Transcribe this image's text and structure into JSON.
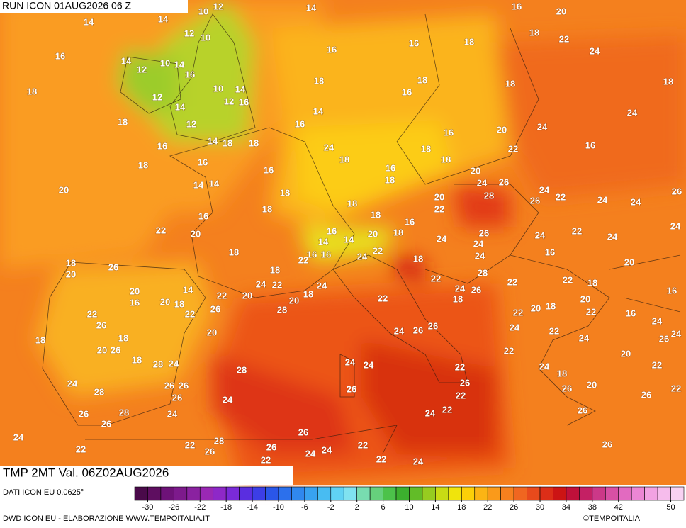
{
  "header": {
    "run": "RUN ICON 01AUG2026 06 Z",
    "field": "TMP 2MT Val. 06Z02AUG2026"
  },
  "footer": {
    "source": "DATI ICON EU 0.0625°",
    "credit": "DWD ICON EU - ELABORAZIONE WWW.TEMPOITALIA.IT",
    "brand": "©TEMPOITALIA"
  },
  "colorbar": {
    "range": [
      -32,
      52
    ],
    "ticks": [
      -30,
      -26,
      -22,
      -18,
      -14,
      -10,
      -6,
      -2,
      2,
      6,
      10,
      14,
      18,
      22,
      26,
      30,
      34,
      38,
      42,
      50
    ],
    "colors": [
      "#4a0a4a",
      "#5e0e60",
      "#6e1278",
      "#7d1a8c",
      "#8a22a0",
      "#9a28b4",
      "#8e28c8",
      "#7a2ad8",
      "#5a2ee0",
      "#3c3ee6",
      "#2a56e8",
      "#2c70ec",
      "#3088ee",
      "#38a2f0",
      "#48bcf2",
      "#60d2f4",
      "#80e2f0",
      "#78dcb0",
      "#66d07c",
      "#4cc24a",
      "#3cb02e",
      "#62bc28",
      "#96cc20",
      "#c8dc14",
      "#f0e40c",
      "#fcd008",
      "#fcb414",
      "#fa9a1a",
      "#f6801e",
      "#f06620",
      "#e84a1c",
      "#dc2e18",
      "#cc1414",
      "#c0103a",
      "#c42064",
      "#cc3888",
      "#d850a4",
      "#e26ac0",
      "#ec86d4",
      "#f2a2e2",
      "#f6bcec",
      "#f8d2f2"
    ]
  },
  "map_labels": [
    10,
    12,
    14,
    16,
    20,
    14,
    14,
    12,
    10,
    18,
    22,
    16,
    16,
    16,
    18,
    24,
    14,
    10,
    14,
    12,
    16,
    18,
    18,
    10,
    14,
    18,
    18,
    16,
    12,
    12,
    16,
    14,
    14,
    18,
    24,
    18,
    12,
    16,
    16,
    20,
    24,
    14,
    18,
    18,
    16,
    24,
    16,
    22,
    18,
    18,
    16,
    16,
    18,
    16,
    18,
    20,
    18,
    14,
    14,
    20,
    18,
    20,
    24,
    26,
    28,
    24,
    22,
    26,
    24,
    24,
    26,
    18,
    18,
    22,
    16,
    18,
    16,
    24,
    22,
    20,
    16,
    14,
    20,
    18,
    24,
    26,
    24,
    22,
    24,
    14,
    18,
    16,
    16,
    24,
    22,
    24,
    16,
    18,
    20,
    26,
    18,
    18,
    22,
    24,
    20,
    28,
    22,
    22,
    22,
    18,
    14,
    20,
    22,
    20,
    24,
    22,
    20,
    18,
    24,
    22,
    24,
    26,
    16,
    16,
    20,
    18,
    26,
    28,
    18,
    22,
    22,
    22,
    20,
    18,
    20,
    22,
    16,
    26,
    24,
    26,
    26,
    24,
    22,
    24,
    20,
    18,
    18,
    20,
    26,
    24,
    26,
    24,
    22,
    20,
    18,
    28,
    24,
    28,
    24,
    24,
    22,
    24,
    18,
    22,
    24,
    26,
    26,
    26,
    26,
    26,
    20,
    22,
    28,
    26,
    24,
    22,
    26,
    26,
    28,
    24,
    24,
    22,
    26,
    26,
    24,
    26,
    26,
    28,
    22,
    26,
    26,
    24,
    24,
    22,
    22,
    22,
    22,
    24
  ],
  "map_label_ids": "see layout"
}
